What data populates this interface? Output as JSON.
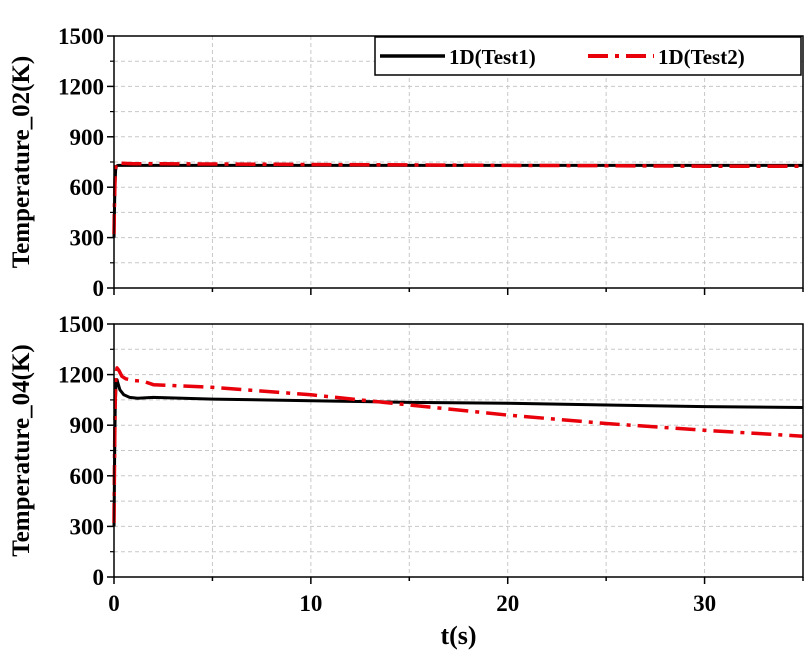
{
  "chart_data": [
    {
      "type": "line",
      "ylabel": "Temperature_02(K)",
      "xlabel": "",
      "xlim": [
        0,
        35
      ],
      "ylim": [
        0,
        1500
      ],
      "yticks": [
        0,
        300,
        600,
        900,
        1200,
        1500
      ],
      "yticklabels": [
        "0",
        "300",
        "600",
        "900",
        "1200",
        "1500"
      ],
      "grid": true,
      "legend_position": "top-right",
      "series": [
        {
          "name": "1D(Test1)",
          "color": "#000000",
          "style": "solid",
          "x": [
            0,
            0.02,
            0.05,
            0.08,
            0.12,
            0.2,
            0.4,
            1,
            5,
            10,
            15,
            20,
            25,
            30,
            35
          ],
          "y": [
            300,
            450,
            620,
            700,
            725,
            730,
            730,
            730,
            730,
            730,
            730,
            730,
            730,
            730,
            730
          ]
        },
        {
          "name": "1D(Test2)",
          "color": "#e8000b",
          "style": "dashdot",
          "x": [
            0,
            0.02,
            0.05,
            0.08,
            0.12,
            0.2,
            0.4,
            1,
            5,
            10,
            15,
            20,
            25,
            30,
            35
          ],
          "y": [
            320,
            480,
            640,
            715,
            740,
            745,
            742,
            740,
            738,
            735,
            733,
            730,
            728,
            725,
            725
          ]
        }
      ]
    },
    {
      "type": "line",
      "ylabel": "Temperature_04(K)",
      "xlabel": "t(s)",
      "xlim": [
        0,
        35
      ],
      "ylim": [
        0,
        1500
      ],
      "xticks": [
        0,
        10,
        20,
        30
      ],
      "xticklabels": [
        "0",
        "10",
        "20",
        "30"
      ],
      "yticks": [
        0,
        300,
        600,
        900,
        1200,
        1500
      ],
      "yticklabels": [
        "0",
        "300",
        "600",
        "900",
        "1200",
        "1500"
      ],
      "grid": true,
      "series": [
        {
          "name": "1D(Test1)",
          "color": "#000000",
          "style": "solid",
          "x": [
            0,
            0.03,
            0.06,
            0.1,
            0.15,
            0.2,
            0.3,
            0.5,
            0.8,
            1.2,
            2,
            5,
            10,
            15,
            20,
            25,
            30,
            35
          ],
          "y": [
            300,
            700,
            1000,
            1150,
            1170,
            1150,
            1110,
            1080,
            1065,
            1060,
            1065,
            1055,
            1045,
            1035,
            1030,
            1020,
            1010,
            1005
          ]
        },
        {
          "name": "1D(Test2)",
          "color": "#e8000b",
          "style": "dashdot",
          "x": [
            0,
            0.03,
            0.06,
            0.1,
            0.15,
            0.25,
            0.4,
            0.6,
            1.0,
            1.5,
            2,
            5,
            10,
            15,
            20,
            25,
            30,
            35
          ],
          "y": [
            320,
            750,
            1050,
            1200,
            1240,
            1225,
            1190,
            1175,
            1165,
            1160,
            1140,
            1125,
            1080,
            1020,
            960,
            910,
            870,
            835
          ]
        }
      ]
    }
  ]
}
